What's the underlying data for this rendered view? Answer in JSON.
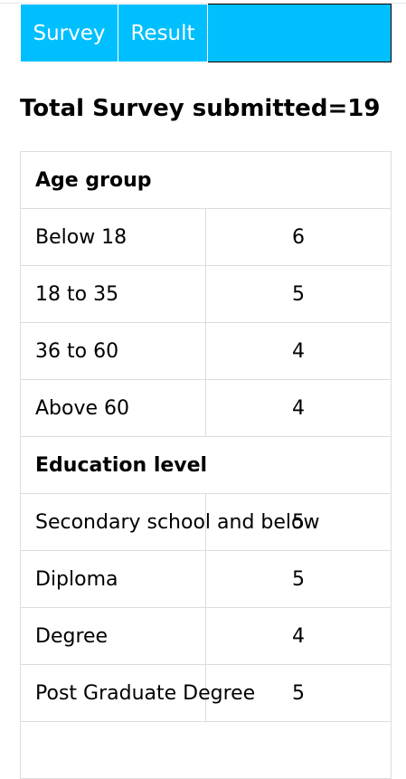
{
  "nav": {
    "survey_label": "Survey",
    "result_label": "Result",
    "background": "#00bfff"
  },
  "summary": {
    "label": "Total Survey submitted",
    "separator": "=",
    "total": "19"
  },
  "age_group": {
    "title": "Age group",
    "rows": [
      {
        "label": "Below 18",
        "count": "6"
      },
      {
        "label": "18 to 35",
        "count": "5"
      },
      {
        "label": "36 to 60",
        "count": "4"
      },
      {
        "label": "Above 60",
        "count": "4"
      }
    ]
  },
  "education_level": {
    "title": "Education level",
    "rows": [
      {
        "label": "Secondary school and below",
        "count": "5"
      },
      {
        "label": "Diploma",
        "count": "5"
      },
      {
        "label": "Degree",
        "count": "4"
      },
      {
        "label": "Post Graduate Degree",
        "count": "5"
      }
    ]
  }
}
